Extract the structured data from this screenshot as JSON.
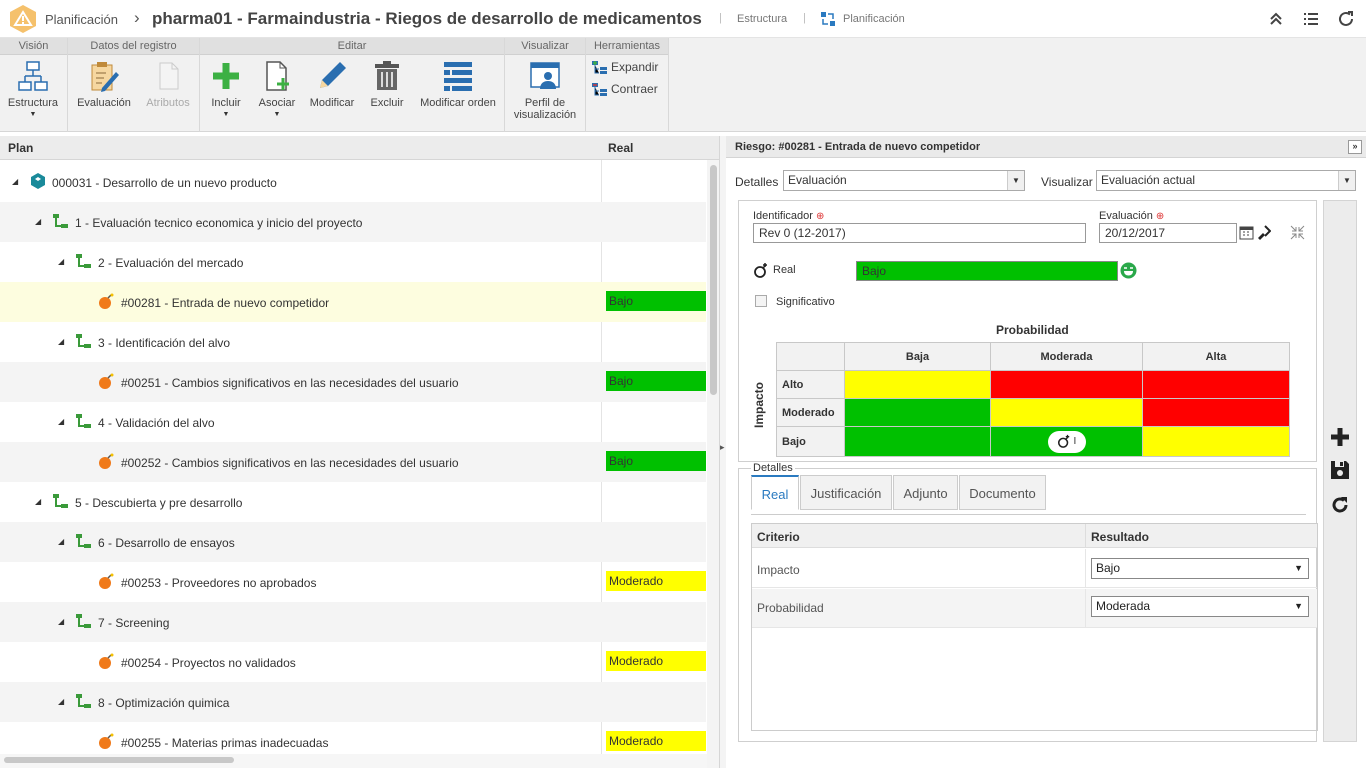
{
  "header": {
    "app": "Planificación",
    "sep": "›",
    "title": "pharma01 - Farmaindustria - Riegos de desarrollo de medicamentos",
    "link1": "Estructura",
    "link2": "Planificación",
    "bar": "|"
  },
  "ribbon": {
    "groups": [
      "Visión",
      "Datos del registro",
      "Editar",
      "Visualizar",
      "Herramientas"
    ],
    "estructura": "Estructura",
    "evaluacion": "Evaluación",
    "atributos": "Atributos",
    "incluir": "Incluir",
    "asociar": "Asociar",
    "modificar": "Modificar",
    "excluir": "Excluir",
    "modificar_orden": "Modificar orden",
    "perfil_1": "Perfil de",
    "perfil_2": "visualización",
    "expandir": "Expandir",
    "contraer": "Contraer"
  },
  "tree": {
    "col_plan": "Plan",
    "col_real": "Real",
    "rows": [
      {
        "label": "000031 - Desarrollo de un nuevo producto",
        "real": ""
      },
      {
        "label": "1 - Evaluación tecnico economica y inicio del proyecto",
        "real": ""
      },
      {
        "label": "2 - Evaluación del mercado",
        "real": ""
      },
      {
        "label": "#00281 - Entrada de nuevo competidor",
        "real": "Bajo"
      },
      {
        "label": "3 - Identificación del alvo",
        "real": ""
      },
      {
        "label": "#00251 - Cambios significativos en las necesidades del usuario",
        "real": "Bajo"
      },
      {
        "label": "4 - Validación del alvo",
        "real": ""
      },
      {
        "label": "#00252 - Cambios significativos en las necesidades del usuario",
        "real": "Bajo"
      },
      {
        "label": "5 - Descubierta y pre desarrollo",
        "real": ""
      },
      {
        "label": "6 - Desarrollo de ensayos",
        "real": ""
      },
      {
        "label": "#00253 - Proveedores no aprobados",
        "real": "Moderado"
      },
      {
        "label": "7 - Screening",
        "real": ""
      },
      {
        "label": "#00254 - Proyectos no validados",
        "real": "Moderado"
      },
      {
        "label": "8 - Optimización quimica",
        "real": ""
      },
      {
        "label": "#00255 - Materias primas inadecuadas",
        "real": "Moderado"
      }
    ]
  },
  "panel": {
    "title": "Riesgo: #00281 - Entrada de nuevo competidor",
    "collapse": "»",
    "detalles_label": "Detalles",
    "detalles_value": "Evaluación",
    "visualizar_label": "Visualizar",
    "visualizar_value": "Evaluación actual",
    "identificador_label": "Identificador",
    "identificador_value": "Rev 0 (12-2017)",
    "evaluacion_label": "Evaluación",
    "evaluacion_value": "20/12/2017",
    "real_label": "Real",
    "real_value": "Bajo",
    "significativo": "Significativo",
    "prob_title": "Probabilidad",
    "impacto_title": "Impacto",
    "cols": [
      "Baja",
      "Moderada",
      "Alta"
    ],
    "rows": [
      "Alto",
      "Moderado",
      "Bajo"
    ],
    "marker": "I",
    "detalles_fieldset": "Detalles",
    "tabs": [
      "Real",
      "Justificación",
      "Adjunto",
      "Documento"
    ],
    "grid_criterio": "Criterio",
    "grid_resultado": "Resultado",
    "grid_rows": [
      {
        "criterio": "Impacto",
        "resultado": "Bajo"
      },
      {
        "criterio": "Probabilidad",
        "resultado": "Moderada"
      }
    ]
  }
}
